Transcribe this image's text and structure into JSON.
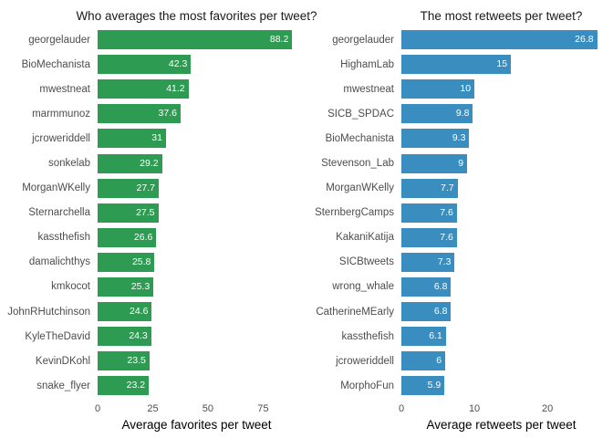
{
  "figure": {
    "background": "#ffffff",
    "grid": false,
    "legend": false
  },
  "chart_data": [
    {
      "type": "bar",
      "orientation": "horizontal",
      "title": "Who averages the most favorites per tweet?",
      "xlabel": "Average favorites per tweet",
      "bar_color": "#2e9b53",
      "value_label_color": "#ffffff",
      "categories": [
        "georgelauder",
        "BioMechanista",
        "mwestneat",
        "marmmunoz",
        "jcroweriddell",
        "sonkelab",
        "MorganWKelly",
        "Sternarchella",
        "kassthefish",
        "damalichthys",
        "kmkocot",
        "JohnRHutchinson",
        "KyleTheDavid",
        "KevinDKohl",
        "snake_flyer"
      ],
      "values": [
        88.2,
        42.3,
        41.2,
        37.6,
        31,
        29.2,
        27.7,
        27.5,
        26.6,
        25.8,
        25.3,
        24.6,
        24.3,
        23.5,
        23.2
      ],
      "value_labels": [
        "88.2",
        "42.3",
        "41.2",
        "37.6",
        "31",
        "29.2",
        "27.7",
        "27.5",
        "26.6",
        "25.8",
        "25.3",
        "24.6",
        "24.3",
        "23.5",
        "23.2"
      ],
      "x_ticks": [
        0,
        25,
        50,
        75
      ],
      "x_max": 92.2,
      "grid": false,
      "legend": false
    },
    {
      "type": "bar",
      "orientation": "horizontal",
      "title": "The most retweets per tweet?",
      "xlabel": "Average retweets per tweet",
      "bar_color": "#3a8ebf",
      "value_label_color": "#ffffff",
      "categories": [
        "georgelauder",
        "HighamLab",
        "mwestneat",
        "SICB_SPDAC",
        "BioMechanista",
        "Stevenson_Lab",
        "MorganWKelly",
        "SternbergCamps",
        "KakaniKatija",
        "SICBtweets",
        "wrong_whale",
        "CatherineMEarly",
        "kassthefish",
        "jcroweriddell",
        "MorphoFun"
      ],
      "values": [
        26.8,
        15,
        10,
        9.8,
        9.3,
        9,
        7.7,
        7.6,
        7.6,
        7.3,
        6.8,
        6.8,
        6.1,
        6,
        5.9
      ],
      "value_labels": [
        "26.8",
        "15",
        "10",
        "9.8",
        "9.3",
        "9",
        "7.7",
        "7.6",
        "7.6",
        "7.3",
        "6.8",
        "6.8",
        "6.1",
        "6",
        "5.9"
      ],
      "x_ticks": [
        0,
        10,
        20
      ],
      "x_max": 28.1,
      "grid": false,
      "legend": false
    }
  ]
}
